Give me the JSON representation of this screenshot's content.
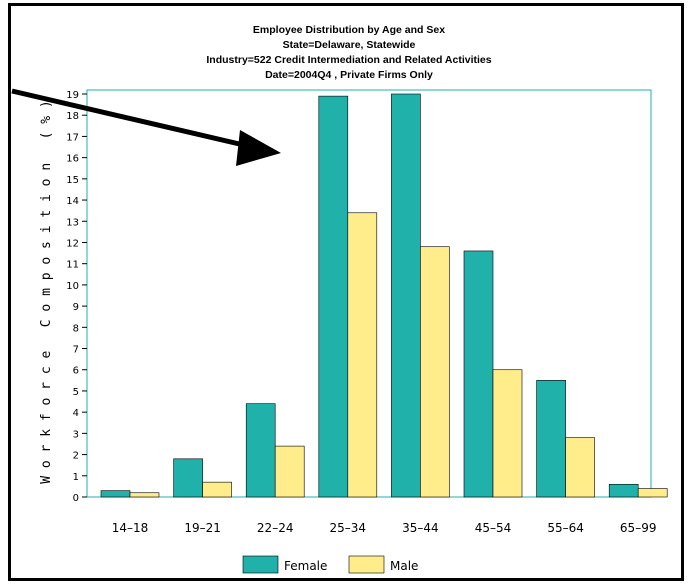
{
  "chart_data": {
    "type": "bar",
    "title": "Employee Distribution by Age and Sex",
    "subtitle_lines": [
      "State=Delaware, Statewide",
      "Industry=522 Credit Intermediation and Related Activities",
      "Date=2004Q4 , Private Firms Only"
    ],
    "xlabel": "",
    "ylabel": "Workforce Composition (%)",
    "ylim": [
      0,
      19
    ],
    "yticks": [
      0,
      1,
      2,
      3,
      4,
      5,
      6,
      7,
      8,
      9,
      10,
      11,
      12,
      13,
      14,
      15,
      16,
      17,
      18,
      19
    ],
    "categories": [
      "14–18",
      "19–21",
      "22–24",
      "25–34",
      "35–44",
      "45–54",
      "55–64",
      "65–99"
    ],
    "series": [
      {
        "name": "Female",
        "color": "#20b2aa",
        "values": [
          0.3,
          1.8,
          4.4,
          18.9,
          19.0,
          11.6,
          5.5,
          0.6
        ]
      },
      {
        "name": "Male",
        "color": "#ffec8b",
        "values": [
          0.2,
          0.7,
          2.4,
          13.4,
          11.8,
          6.0,
          2.8,
          0.4
        ]
      }
    ],
    "legend_position": "bottom",
    "grid": false,
    "annotation": "arrow pointing to the 25–34 bars"
  }
}
